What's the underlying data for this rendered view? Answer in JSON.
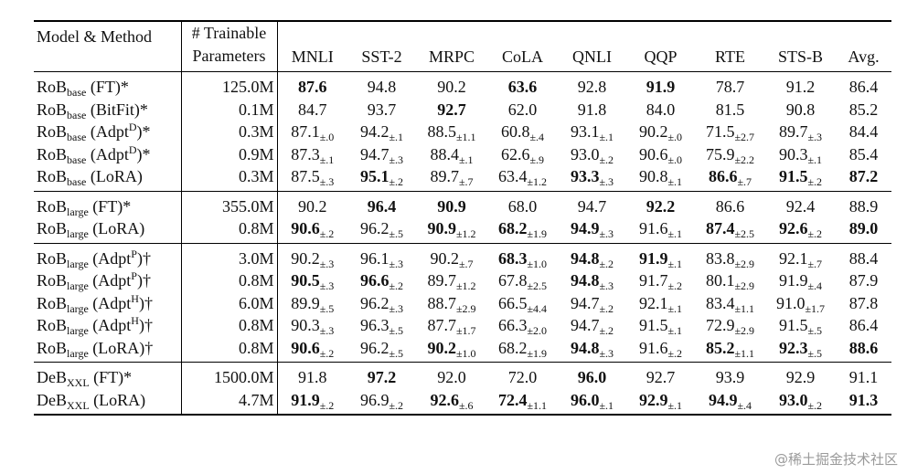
{
  "header": {
    "model_method": "Model & Method",
    "params": [
      "# Trainable",
      "Parameters"
    ],
    "tasks": [
      "MNLI",
      "SST-2",
      "MRPC",
      "CoLA",
      "QNLI",
      "QQP",
      "RTE",
      "STS-B",
      "Avg."
    ]
  },
  "groups": [
    {
      "rows": [
        {
          "model": [
            {
              "t": "RoB"
            },
            {
              "t": "base",
              "s": "sub"
            },
            {
              "t": " (FT)*"
            }
          ],
          "params": "125.0M",
          "cells": [
            {
              "v": "87.6",
              "b": true
            },
            {
              "v": "94.8"
            },
            {
              "v": "90.2"
            },
            {
              "v": "63.6",
              "b": true
            },
            {
              "v": "92.8"
            },
            {
              "v": "91.9",
              "b": true
            },
            {
              "v": "78.7"
            },
            {
              "v": "91.2"
            },
            {
              "v": "86.4"
            }
          ]
        },
        {
          "model": [
            {
              "t": "RoB"
            },
            {
              "t": "base",
              "s": "sub"
            },
            {
              "t": " (BitFit)*"
            }
          ],
          "params": "0.1M",
          "cells": [
            {
              "v": "84.7"
            },
            {
              "v": "93.7"
            },
            {
              "v": "92.7",
              "b": true
            },
            {
              "v": "62.0"
            },
            {
              "v": "91.8"
            },
            {
              "v": "84.0"
            },
            {
              "v": "81.5"
            },
            {
              "v": "90.8"
            },
            {
              "v": "85.2"
            }
          ]
        },
        {
          "model": [
            {
              "t": "RoB"
            },
            {
              "t": "base",
              "s": "sub"
            },
            {
              "t": " (Adpt"
            },
            {
              "t": "D",
              "s": "sup"
            },
            {
              "t": ")*"
            }
          ],
          "params": "0.3M",
          "cells": [
            {
              "v": "87.1",
              "e": "±.0"
            },
            {
              "v": "94.2",
              "e": "±.1"
            },
            {
              "v": "88.5",
              "e": "±1.1"
            },
            {
              "v": "60.8",
              "e": "±.4"
            },
            {
              "v": "93.1",
              "e": "±.1"
            },
            {
              "v": "90.2",
              "e": "±.0"
            },
            {
              "v": "71.5",
              "e": "±2.7"
            },
            {
              "v": "89.7",
              "e": "±.3"
            },
            {
              "v": "84.4"
            }
          ]
        },
        {
          "model": [
            {
              "t": "RoB"
            },
            {
              "t": "base",
              "s": "sub"
            },
            {
              "t": " (Adpt"
            },
            {
              "t": "D",
              "s": "sup"
            },
            {
              "t": ")*"
            }
          ],
          "params": "0.9M",
          "cells": [
            {
              "v": "87.3",
              "e": "±.1"
            },
            {
              "v": "94.7",
              "e": "±.3"
            },
            {
              "v": "88.4",
              "e": "±.1"
            },
            {
              "v": "62.6",
              "e": "±.9"
            },
            {
              "v": "93.0",
              "e": "±.2"
            },
            {
              "v": "90.6",
              "e": "±.0"
            },
            {
              "v": "75.9",
              "e": "±2.2"
            },
            {
              "v": "90.3",
              "e": "±.1"
            },
            {
              "v": "85.4"
            }
          ]
        },
        {
          "model": [
            {
              "t": "RoB"
            },
            {
              "t": "base",
              "s": "sub"
            },
            {
              "t": " (LoRA)"
            }
          ],
          "params": "0.3M",
          "cells": [
            {
              "v": "87.5",
              "e": "±.3"
            },
            {
              "v": "95.1",
              "e": "±.2",
              "b": true
            },
            {
              "v": "89.7",
              "e": "±.7"
            },
            {
              "v": "63.4",
              "e": "±1.2"
            },
            {
              "v": "93.3",
              "e": "±.3",
              "b": true
            },
            {
              "v": "90.8",
              "e": "±.1"
            },
            {
              "v": "86.6",
              "e": "±.7",
              "b": true
            },
            {
              "v": "91.5",
              "e": "±.2",
              "b": true
            },
            {
              "v": "87.2",
              "b": true
            }
          ]
        }
      ]
    },
    {
      "rows": [
        {
          "model": [
            {
              "t": "RoB"
            },
            {
              "t": "large",
              "s": "sub"
            },
            {
              "t": " (FT)*"
            }
          ],
          "params": "355.0M",
          "cells": [
            {
              "v": "90.2"
            },
            {
              "v": "96.4",
              "b": true
            },
            {
              "v": "90.9",
              "b": true
            },
            {
              "v": "68.0"
            },
            {
              "v": "94.7"
            },
            {
              "v": "92.2",
              "b": true
            },
            {
              "v": "86.6"
            },
            {
              "v": "92.4"
            },
            {
              "v": "88.9"
            }
          ]
        },
        {
          "model": [
            {
              "t": "RoB"
            },
            {
              "t": "large",
              "s": "sub"
            },
            {
              "t": " (LoRA)"
            }
          ],
          "params": "0.8M",
          "cells": [
            {
              "v": "90.6",
              "e": "±.2",
              "b": true
            },
            {
              "v": "96.2",
              "e": "±.5"
            },
            {
              "v": "90.9",
              "e": "±1.2",
              "b": true
            },
            {
              "v": "68.2",
              "e": "±1.9",
              "b": true
            },
            {
              "v": "94.9",
              "e": "±.3",
              "b": true
            },
            {
              "v": "91.6",
              "e": "±.1"
            },
            {
              "v": "87.4",
              "e": "±2.5",
              "b": true
            },
            {
              "v": "92.6",
              "e": "±.2",
              "b": true
            },
            {
              "v": "89.0",
              "b": true
            }
          ]
        }
      ]
    },
    {
      "rows": [
        {
          "model": [
            {
              "t": "RoB"
            },
            {
              "t": "large",
              "s": "sub"
            },
            {
              "t": " (Adpt"
            },
            {
              "t": "P",
              "s": "sup"
            },
            {
              "t": ")†"
            }
          ],
          "params": "3.0M",
          "cells": [
            {
              "v": "90.2",
              "e": "±.3"
            },
            {
              "v": "96.1",
              "e": "±.3"
            },
            {
              "v": "90.2",
              "e": "±.7"
            },
            {
              "v": "68.3",
              "e": "±1.0",
              "b": true
            },
            {
              "v": "94.8",
              "e": "±.2",
              "b": true
            },
            {
              "v": "91.9",
              "e": "±.1",
              "b": true
            },
            {
              "v": "83.8",
              "e": "±2.9"
            },
            {
              "v": "92.1",
              "e": "±.7"
            },
            {
              "v": "88.4"
            }
          ]
        },
        {
          "model": [
            {
              "t": "RoB"
            },
            {
              "t": "large",
              "s": "sub"
            },
            {
              "t": " (Adpt"
            },
            {
              "t": "P",
              "s": "sup"
            },
            {
              "t": ")†"
            }
          ],
          "params": "0.8M",
          "cells": [
            {
              "v": "90.5",
              "e": "±.3",
              "b": true
            },
            {
              "v": "96.6",
              "e": "±.2",
              "b": true
            },
            {
              "v": "89.7",
              "e": "±1.2"
            },
            {
              "v": "67.8",
              "e": "±2.5"
            },
            {
              "v": "94.8",
              "e": "±.3",
              "b": true
            },
            {
              "v": "91.7",
              "e": "±.2"
            },
            {
              "v": "80.1",
              "e": "±2.9"
            },
            {
              "v": "91.9",
              "e": "±.4"
            },
            {
              "v": "87.9"
            }
          ]
        },
        {
          "model": [
            {
              "t": "RoB"
            },
            {
              "t": "large",
              "s": "sub"
            },
            {
              "t": " (Adpt"
            },
            {
              "t": "H",
              "s": "sup"
            },
            {
              "t": ")†"
            }
          ],
          "params": "6.0M",
          "cells": [
            {
              "v": "89.9",
              "e": "±.5"
            },
            {
              "v": "96.2",
              "e": "±.3"
            },
            {
              "v": "88.7",
              "e": "±2.9"
            },
            {
              "v": "66.5",
              "e": "±4.4"
            },
            {
              "v": "94.7",
              "e": "±.2"
            },
            {
              "v": "92.1",
              "e": "±.1"
            },
            {
              "v": "83.4",
              "e": "±1.1"
            },
            {
              "v": "91.0",
              "e": "±1.7"
            },
            {
              "v": "87.8"
            }
          ]
        },
        {
          "model": [
            {
              "t": "RoB"
            },
            {
              "t": "large",
              "s": "sub"
            },
            {
              "t": " (Adpt"
            },
            {
              "t": "H",
              "s": "sup"
            },
            {
              "t": ")†"
            }
          ],
          "params": "0.8M",
          "cells": [
            {
              "v": "90.3",
              "e": "±.3"
            },
            {
              "v": "96.3",
              "e": "±.5"
            },
            {
              "v": "87.7",
              "e": "±1.7"
            },
            {
              "v": "66.3",
              "e": "±2.0"
            },
            {
              "v": "94.7",
              "e": "±.2"
            },
            {
              "v": "91.5",
              "e": "±.1"
            },
            {
              "v": "72.9",
              "e": "±2.9"
            },
            {
              "v": "91.5",
              "e": "±.5"
            },
            {
              "v": "86.4"
            }
          ]
        },
        {
          "model": [
            {
              "t": "RoB"
            },
            {
              "t": "large",
              "s": "sub"
            },
            {
              "t": " (LoRA)†"
            }
          ],
          "params": "0.8M",
          "cells": [
            {
              "v": "90.6",
              "e": "±.2",
              "b": true
            },
            {
              "v": "96.2",
              "e": "±.5"
            },
            {
              "v": "90.2",
              "e": "±1.0",
              "b": true
            },
            {
              "v": "68.2",
              "e": "±1.9"
            },
            {
              "v": "94.8",
              "e": "±.3",
              "b": true
            },
            {
              "v": "91.6",
              "e": "±.2"
            },
            {
              "v": "85.2",
              "e": "±1.1",
              "b": true
            },
            {
              "v": "92.3",
              "e": "±.5",
              "b": true
            },
            {
              "v": "88.6",
              "b": true
            }
          ]
        }
      ]
    },
    {
      "rows": [
        {
          "model": [
            {
              "t": "DeB"
            },
            {
              "t": "XXL",
              "s": "sub"
            },
            {
              "t": " (FT)*"
            }
          ],
          "params": "1500.0M",
          "cells": [
            {
              "v": "91.8"
            },
            {
              "v": "97.2",
              "b": true
            },
            {
              "v": "92.0"
            },
            {
              "v": "72.0"
            },
            {
              "v": "96.0",
              "b": true
            },
            {
              "v": "92.7"
            },
            {
              "v": "93.9"
            },
            {
              "v": "92.9"
            },
            {
              "v": "91.1"
            }
          ]
        },
        {
          "model": [
            {
              "t": "DeB"
            },
            {
              "t": "XXL",
              "s": "sub"
            },
            {
              "t": " (LoRA)"
            }
          ],
          "params": "4.7M",
          "cells": [
            {
              "v": "91.9",
              "e": "±.2",
              "b": true
            },
            {
              "v": "96.9",
              "e": "±.2"
            },
            {
              "v": "92.6",
              "e": "±.6",
              "b": true
            },
            {
              "v": "72.4",
              "e": "±1.1",
              "b": true
            },
            {
              "v": "96.0",
              "e": "±.1",
              "b": true
            },
            {
              "v": "92.9",
              "e": "±.1",
              "b": true
            },
            {
              "v": "94.9",
              "e": "±.4",
              "b": true
            },
            {
              "v": "93.0",
              "e": "±.2",
              "b": true
            },
            {
              "v": "91.3",
              "b": true
            }
          ]
        }
      ]
    }
  ],
  "watermark": "@稀土掘金技术社区"
}
